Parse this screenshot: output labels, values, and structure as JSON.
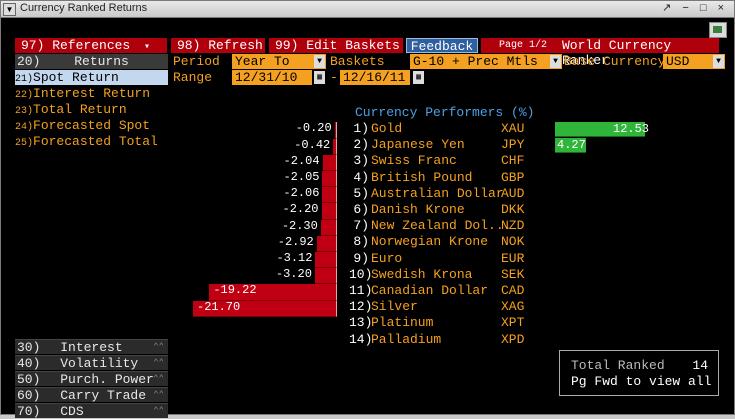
{
  "window": {
    "title": "Currency Ranked Returns",
    "controls": "↗ − □ ×"
  },
  "toolbar": {
    "references": "97) References",
    "references_arrow": "▾",
    "refresh": "98) Refresh",
    "edit_baskets": "99) Edit Baskets",
    "feedback": "Feedback",
    "page": "Page 1/2",
    "app_title": "World Currency Ranker"
  },
  "controls": {
    "period_label": "Period",
    "period_value": "Year To Date",
    "baskets_label": "Baskets",
    "baskets_value": "G-10 + Prec Mtls",
    "base_label": "Base Currency",
    "base_value": "USD",
    "range_label": "Range",
    "range_start": "12/31/10",
    "range_sep": "-",
    "range_end": "12/16/11"
  },
  "sidebar": {
    "header": {
      "num": "20)",
      "label": "Returns"
    },
    "items": [
      {
        "num": "21)",
        "label": "Spot Return"
      },
      {
        "num": "22)",
        "label": "Interest Return"
      },
      {
        "num": "23)",
        "label": "Total Return"
      },
      {
        "num": "24)",
        "label": "Forecasted Spot"
      },
      {
        "num": "25)",
        "label": "Forecasted Total"
      }
    ],
    "categories": [
      {
        "num": "30)",
        "label": "Interest Rates"
      },
      {
        "num": "40)",
        "label": "Volatility"
      },
      {
        "num": "50)",
        "label": "Purch. Power"
      },
      {
        "num": "60)",
        "label": "Carry Trade"
      },
      {
        "num": "70)",
        "label": "CDS"
      }
    ]
  },
  "performers": {
    "header": "Currency Performers   (%)",
    "rows": [
      {
        "rank": "1)",
        "name": "Gold",
        "code": "XAU",
        "value": 12.53,
        "label": "12.53"
      },
      {
        "rank": "2)",
        "name": "Japanese Yen",
        "code": "JPY",
        "value": 4.27,
        "label": "4.27"
      },
      {
        "rank": "3)",
        "name": "Swiss Franc",
        "code": "CHF",
        "value": -0.2,
        "label": "-0.20"
      },
      {
        "rank": "4)",
        "name": "British Pound",
        "code": "GBP",
        "value": -0.42,
        "label": "-0.42"
      },
      {
        "rank": "5)",
        "name": "Australian Dollar",
        "code": "AUD",
        "value": -2.04,
        "label": "-2.04"
      },
      {
        "rank": "6)",
        "name": "Danish Krone",
        "code": "DKK",
        "value": -2.05,
        "label": "-2.05"
      },
      {
        "rank": "7)",
        "name": "New Zealand Dol...",
        "code": "NZD",
        "value": -2.06,
        "label": "-2.06"
      },
      {
        "rank": "8)",
        "name": "Norwegian Krone",
        "code": "NOK",
        "value": -2.2,
        "label": "-2.20"
      },
      {
        "rank": "9)",
        "name": "Euro",
        "code": "EUR",
        "value": -2.3,
        "label": "-2.30"
      },
      {
        "rank": "10)",
        "name": "Swedish Krona",
        "code": "SEK",
        "value": -2.92,
        "label": "-2.92"
      },
      {
        "rank": "11)",
        "name": "Canadian Dollar",
        "code": "CAD",
        "value": -3.12,
        "label": "-3.12"
      },
      {
        "rank": "12)",
        "name": "Silver",
        "code": "XAG",
        "value": -3.2,
        "label": "-3.20"
      },
      {
        "rank": "13)",
        "name": "Platinum",
        "code": "XPT",
        "value": -19.22,
        "label": "-19.22"
      },
      {
        "rank": "14)",
        "name": "Palladium",
        "code": "XPD",
        "value": -21.7,
        "label": "-21.70"
      }
    ]
  },
  "summary": {
    "total_label": "Total Ranked",
    "total_value": "14",
    "hint": "Pg Fwd to view all"
  },
  "colors": {
    "positive": "#2fb53a",
    "negative": "#c00012",
    "accent": "#f4a020",
    "header_blue": "#4aa0e6"
  }
}
